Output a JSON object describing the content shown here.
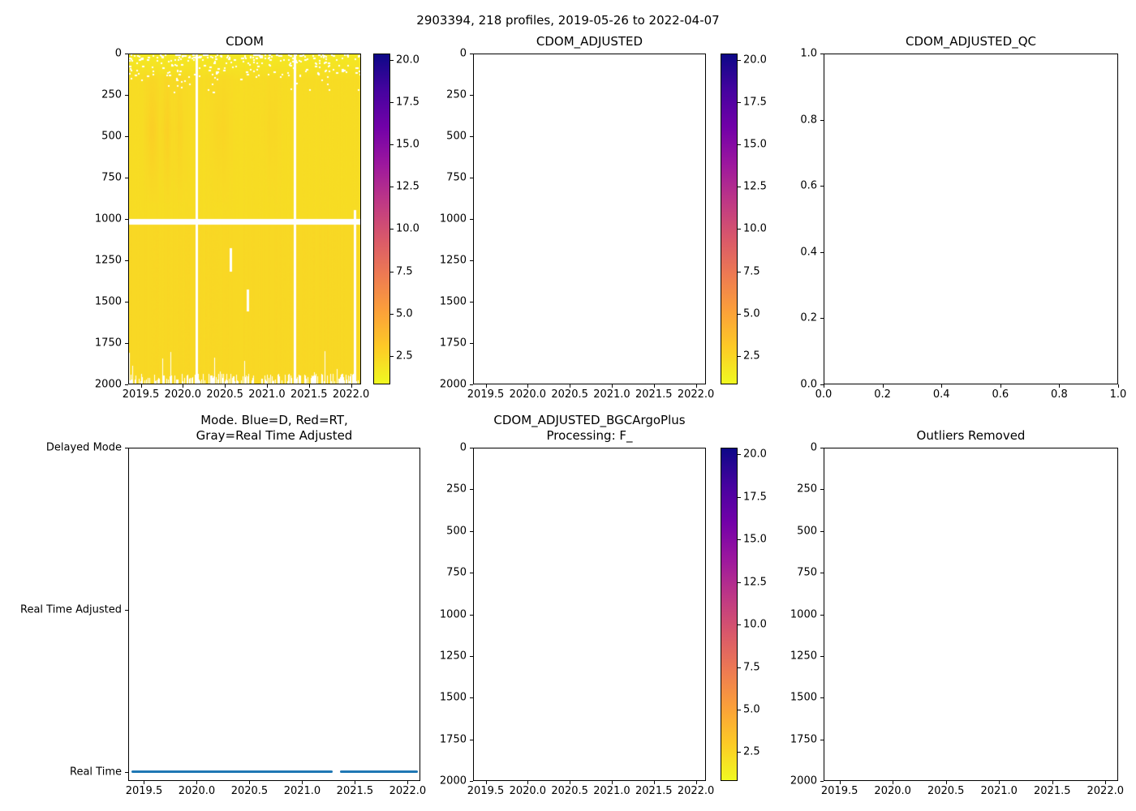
{
  "figure": {
    "suptitle": "2903394, 218 profiles, 2019-05-26 to 2022-04-07",
    "background_color": "#ffffff",
    "text_color": "#000000",
    "axis_color": "#000000"
  },
  "colormap": {
    "name": "plasma_r",
    "stops_low_to_high": [
      "#f0f921",
      "#fdca26",
      "#fb9f3a",
      "#ed7953",
      "#d8576b",
      "#bd3786",
      "#9c179e",
      "#7201a8",
      "#46039f",
      "#0d0887"
    ]
  },
  "chart_data": [
    {
      "id": "cdom",
      "type": "heatmap",
      "title": "CDOM",
      "xlim": [
        2019.35,
        2022.12
      ],
      "ylim_top_bottom": [
        0,
        2000
      ],
      "xtick_values": [
        2019.5,
        2020.0,
        2020.5,
        2021.0,
        2021.5,
        2022.0
      ],
      "xtick_labels": [
        "2019.5",
        "2020.0",
        "2020.5",
        "2021.0",
        "2021.5",
        "2022.0"
      ],
      "ytick_values": [
        0,
        250,
        500,
        750,
        1000,
        1250,
        1500,
        1750,
        2000
      ],
      "ytick_labels": [
        "0",
        "250",
        "500",
        "750",
        "1000",
        "1250",
        "1500",
        "1750",
        "2000"
      ],
      "colorbar": {
        "vmin": 0.8,
        "vmax": 20.4,
        "tick_values": [
          2.5,
          5.0,
          7.5,
          10.0,
          12.5,
          15.0,
          17.5,
          20.0
        ],
        "tick_labels": [
          "2.5",
          "5.0",
          "7.5",
          "10.0",
          "12.5",
          "15.0",
          "17.5",
          "20.0"
        ]
      },
      "heatmap": {
        "seed": 7,
        "base_value_top": 1.5,
        "base_value_mid": 2.1,
        "base_value_deep": 2.3,
        "top_band_depth": 150,
        "column_noise": 0.06,
        "pixel_noise": 0.05,
        "plumes": [
          {
            "x": 2019.62,
            "sigma": 0.05,
            "amplitude": 0.6
          },
          {
            "x": 2019.8,
            "sigma": 0.04,
            "amplitude": 0.5
          },
          {
            "x": 2019.95,
            "sigma": 0.04,
            "amplitude": 0.35
          },
          {
            "x": 2020.45,
            "sigma": 0.07,
            "amplitude": 0.3
          },
          {
            "x": 2021.05,
            "sigma": 0.06,
            "amplitude": 0.22
          }
        ],
        "missing_row_depths": [
          1002,
          1030
        ],
        "full_missing_columns_x": [
          2020.15,
          2021.33
        ],
        "partial_missing_columns": [
          {
            "x": 2020.56,
            "depths": [
              1180,
              1320
            ]
          },
          {
            "x": 2020.76,
            "depths": [
              1430,
              1560
            ]
          },
          {
            "x": 2022.05,
            "depths": [
              950,
              2000
            ]
          }
        ],
        "bottom_comb_chance": 0.5,
        "top_speckles": 280,
        "top_speckle_max_depth": 250
      }
    },
    {
      "id": "cdom-adjusted",
      "type": "heatmap-empty",
      "title": "CDOM_ADJUSTED",
      "xlim": [
        2019.35,
        2022.12
      ],
      "ylim_top_bottom": [
        0,
        2000
      ],
      "xtick_values": [
        2019.5,
        2020.0,
        2020.5,
        2021.0,
        2021.5,
        2022.0
      ],
      "xtick_labels": [
        "2019.5",
        "2020.0",
        "2020.5",
        "2021.0",
        "2021.5",
        "2022.0"
      ],
      "ytick_values": [
        0,
        250,
        500,
        750,
        1000,
        1250,
        1500,
        1750,
        2000
      ],
      "ytick_labels": [
        "0",
        "250",
        "500",
        "750",
        "1000",
        "1250",
        "1500",
        "1750",
        "2000"
      ],
      "colorbar": {
        "vmin": 0.8,
        "vmax": 20.4,
        "tick_values": [
          2.5,
          5.0,
          7.5,
          10.0,
          12.5,
          15.0,
          17.5,
          20.0
        ],
        "tick_labels": [
          "2.5",
          "5.0",
          "7.5",
          "10.0",
          "12.5",
          "15.0",
          "17.5",
          "20.0"
        ]
      }
    },
    {
      "id": "cdom-adjusted-qc",
      "type": "empty",
      "title": "CDOM_ADJUSTED_QC",
      "xlim": [
        0,
        1
      ],
      "ylim_top_bottom": [
        1,
        0
      ],
      "xtick_values": [
        0,
        0.2,
        0.4,
        0.6,
        0.8,
        1.0
      ],
      "xtick_labels": [
        "0.0",
        "0.2",
        "0.4",
        "0.6",
        "0.8",
        "1.0"
      ],
      "ytick_values": [
        0,
        0.2,
        0.4,
        0.6,
        0.8,
        1.0
      ],
      "ytick_labels": [
        "0.0",
        "0.2",
        "0.4",
        "0.6",
        "0.8",
        "1.0"
      ]
    },
    {
      "id": "mode",
      "type": "category-line",
      "title": "Mode. Blue=D, Red=RT,\nGray=Real Time Adjusted",
      "xlim": [
        2019.35,
        2022.12
      ],
      "ylim_top_bottom": [
        2.0,
        -0.056
      ],
      "xtick_values": [
        2019.5,
        2020.0,
        2020.5,
        2021.0,
        2021.5,
        2022.0
      ],
      "xtick_labels": [
        "2019.5",
        "2020.0",
        "2020.5",
        "2021.0",
        "2021.5",
        "2022.0"
      ],
      "ytick_values": [
        2,
        1,
        0
      ],
      "ytick_labels": [
        "Delayed Mode",
        "Real Time Adjusted",
        "Real Time"
      ],
      "series": [
        {
          "name": "mode-real-time",
          "color": "#1f77b4",
          "y_value": 0,
          "segments_x": [
            [
              2019.38,
              2021.29
            ],
            [
              2021.36,
              2022.1
            ]
          ]
        }
      ]
    },
    {
      "id": "cdom-adjusted-bgcargoplus",
      "type": "heatmap-empty",
      "title": "CDOM_ADJUSTED_BGCArgoPlus\nProcessing: F_",
      "xlim": [
        2019.35,
        2022.12
      ],
      "ylim_top_bottom": [
        0,
        2000
      ],
      "xtick_values": [
        2019.5,
        2020.0,
        2020.5,
        2021.0,
        2021.5,
        2022.0
      ],
      "xtick_labels": [
        "2019.5",
        "2020.0",
        "2020.5",
        "2021.0",
        "2021.5",
        "2022.0"
      ],
      "ytick_values": [
        0,
        250,
        500,
        750,
        1000,
        1250,
        1500,
        1750,
        2000
      ],
      "ytick_labels": [
        "0",
        "250",
        "500",
        "750",
        "1000",
        "1250",
        "1500",
        "1750",
        "2000"
      ],
      "colorbar": {
        "vmin": 0.8,
        "vmax": 20.4,
        "tick_values": [
          2.5,
          5.0,
          7.5,
          10.0,
          12.5,
          15.0,
          17.5,
          20.0
        ],
        "tick_labels": [
          "2.5",
          "5.0",
          "7.5",
          "10.0",
          "12.5",
          "15.0",
          "17.5",
          "20.0"
        ]
      }
    },
    {
      "id": "outliers-removed",
      "type": "empty",
      "title": "Outliers Removed",
      "xlim": [
        2019.35,
        2022.12
      ],
      "ylim_top_bottom": [
        0,
        2000
      ],
      "xtick_values": [
        2019.5,
        2020.0,
        2020.5,
        2021.0,
        2021.5,
        2022.0
      ],
      "xtick_labels": [
        "2019.5",
        "2020.0",
        "2020.5",
        "2021.0",
        "2021.5",
        "2022.0"
      ],
      "ytick_values": [
        0,
        250,
        500,
        750,
        1000,
        1250,
        1500,
        1750,
        2000
      ],
      "ytick_labels": [
        "0",
        "250",
        "500",
        "750",
        "1000",
        "1250",
        "1500",
        "1750",
        "2000"
      ]
    }
  ]
}
